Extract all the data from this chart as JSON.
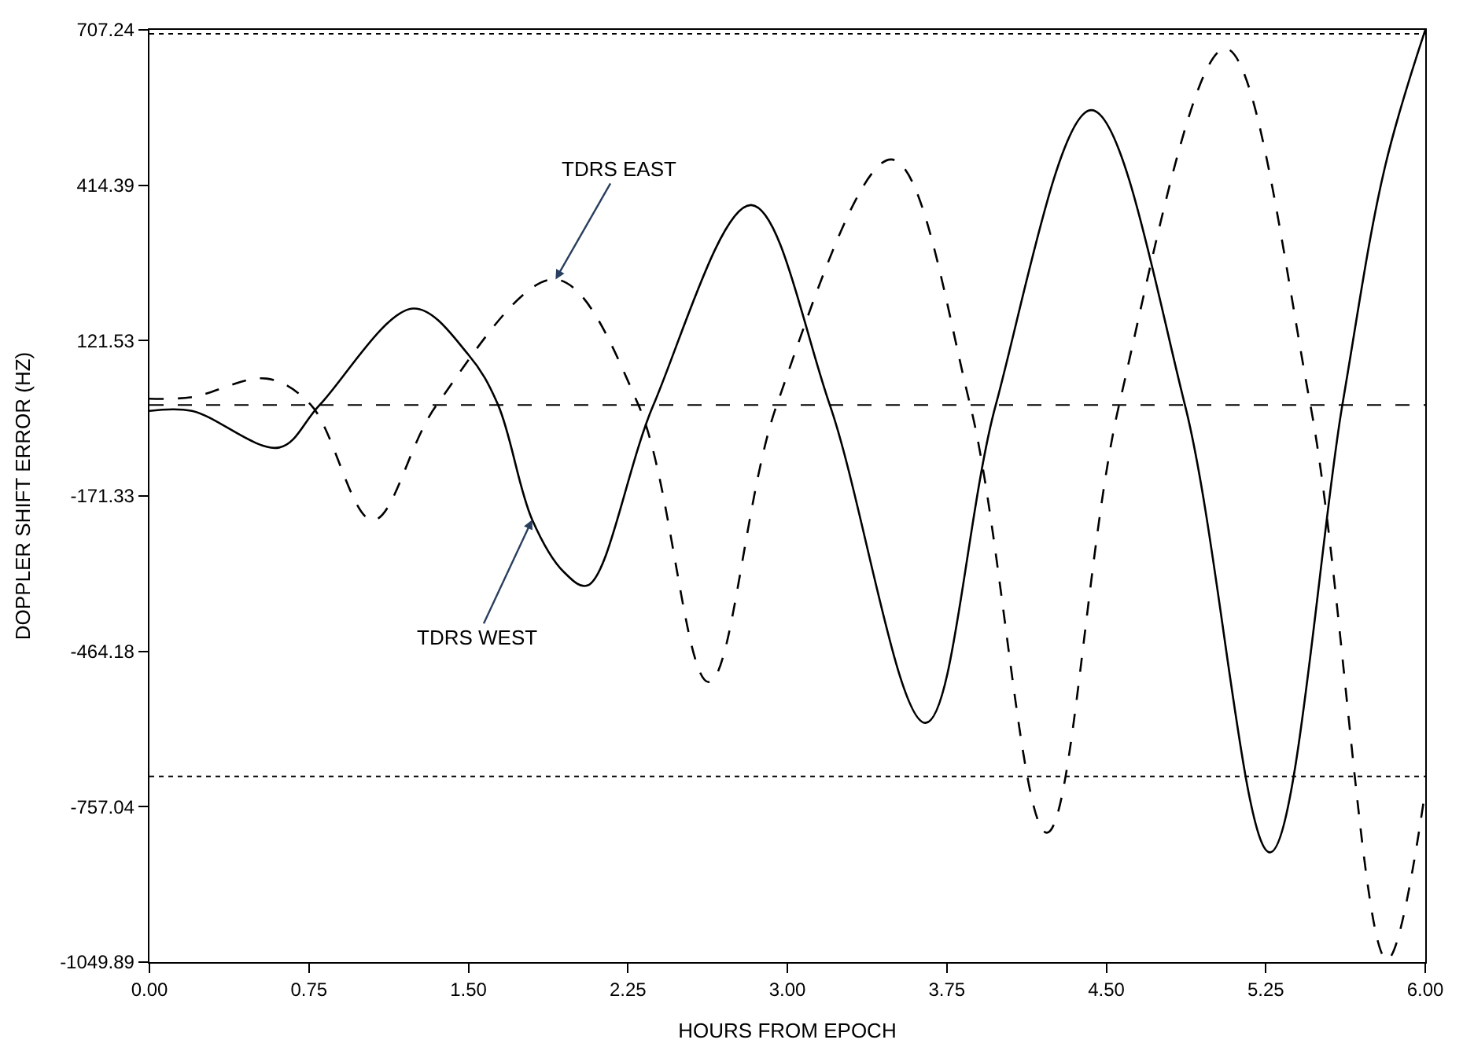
{
  "chart_data": {
    "type": "line",
    "xlabel": "HOURS FROM EPOCH",
    "ylabel": "DOPPLER SHIFT ERROR (HZ)",
    "xlim": [
      0,
      6
    ],
    "xticks": [
      {
        "value": 0,
        "label": "0.00"
      },
      {
        "value": 0.75,
        "label": "0.75"
      },
      {
        "value": 1.5,
        "label": "1.50"
      },
      {
        "value": 2.25,
        "label": "2.25"
      },
      {
        "value": 3,
        "label": "3.00"
      },
      {
        "value": 3.75,
        "label": "3.75"
      },
      {
        "value": 4.5,
        "label": "4.50"
      },
      {
        "value": 5.25,
        "label": "5.25"
      },
      {
        "value": 6,
        "label": "6.00"
      }
    ],
    "ylim": [
      -1049.89,
      707.24
    ],
    "yticks": [
      -1049.89,
      -757.04,
      -464.18,
      -171.33,
      121.53,
      414.39,
      707.24
    ],
    "marker": "none",
    "series": [
      {
        "color": "#000000",
        "line_style": "solid",
        "x": [
          0,
          0.2,
          0.61,
          0.8,
          1.24,
          1.5,
          1.64,
          1.8,
          1.95,
          2.06,
          2.37,
          2.83,
          3.2,
          3.65,
          3.98,
          4.43,
          4.87,
          5.27,
          5.61,
          5.81,
          6.0
        ],
        "values": [
          -11,
          -11,
          -80,
          0,
          182,
          95,
          0,
          -216,
          -315,
          -340,
          0,
          377,
          0,
          -599,
          0,
          556,
          0,
          -843,
          0,
          448,
          707
        ]
      },
      {
        "color": "#000000",
        "line_style": "dashed",
        "x": [
          0,
          0.2,
          0.55,
          0.76,
          1.05,
          1.35,
          1.91,
          2.3,
          2.63,
          2.95,
          3.49,
          3.86,
          4.22,
          4.56,
          5.06,
          5.46,
          5.82,
          6.0
        ],
        "values": [
          12,
          15,
          50,
          0,
          -217,
          0,
          237,
          0,
          -522,
          0,
          463,
          0,
          -806,
          0,
          672,
          0,
          -1045,
          -727
        ]
      }
    ],
    "ref_lines": [
      {
        "axis": "y",
        "value": 0,
        "line_style": "dashed",
        "color": "#000000"
      },
      {
        "axis": "y",
        "value": 700,
        "line_style": "dotted",
        "color": "#000000"
      },
      {
        "axis": "y",
        "value": -700,
        "line_style": "dotted",
        "color": "#000000"
      }
    ],
    "annotations": [
      {
        "text": "TDRS EAST",
        "x": 1.91,
        "y": 237
      },
      {
        "text": "TDRS WEST",
        "x": 1.8,
        "y": -216
      }
    ]
  }
}
